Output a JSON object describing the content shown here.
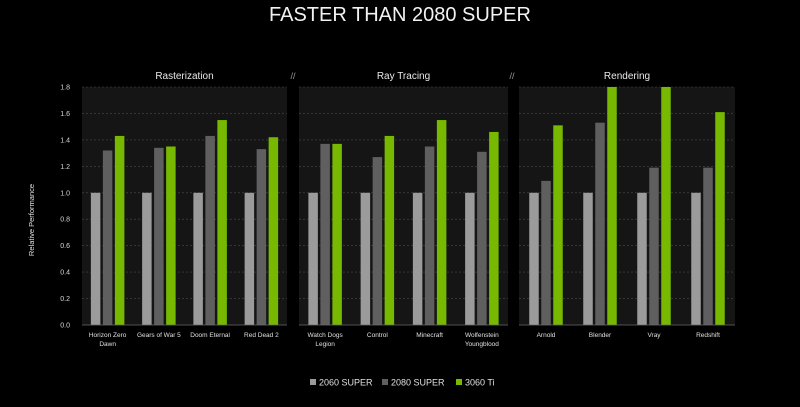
{
  "chart_data": {
    "type": "bar",
    "title": "FASTER THAN 2080 SUPER",
    "ylabel": "Relative Performance",
    "ylim": [
      0,
      1.8
    ],
    "yticks": [
      "0.0",
      "0.2",
      "0.4",
      "0.6",
      "0.8",
      "1.0",
      "1.2",
      "1.4",
      "1.6",
      "1.8"
    ],
    "grid": true,
    "legend_position": "bottom",
    "separator": "//",
    "series": [
      {
        "name": "2060 SUPER",
        "color": "#9b9b9b"
      },
      {
        "name": "2080 SUPER",
        "color": "#5f5f5f"
      },
      {
        "name": "3060 Ti",
        "color": "#76b900"
      }
    ],
    "panels": [
      {
        "title": "Rasterization",
        "categories": [
          "Horizon Zero\nDawn",
          "Gears of War 5",
          "Doom Eternal",
          "Red Dead 2"
        ],
        "values": [
          [
            1.0,
            1.32,
            1.43
          ],
          [
            1.0,
            1.34,
            1.35
          ],
          [
            1.0,
            1.43,
            1.55
          ],
          [
            1.0,
            1.33,
            1.42
          ]
        ]
      },
      {
        "title": "Ray Tracing",
        "categories": [
          "Watch Dogs\nLegion",
          "Control",
          "Minecraft",
          "Wolfenstein\nYoungblood"
        ],
        "values": [
          [
            1.0,
            1.37,
            1.37
          ],
          [
            1.0,
            1.27,
            1.43
          ],
          [
            1.0,
            1.35,
            1.55
          ],
          [
            1.0,
            1.31,
            1.46
          ]
        ]
      },
      {
        "title": "Rendering",
        "categories": [
          "Arnold",
          "Blender",
          "Vray",
          "Redshift"
        ],
        "values": [
          [
            1.0,
            1.09,
            1.51
          ],
          [
            1.0,
            1.53,
            1.8
          ],
          [
            1.0,
            1.19,
            1.8
          ],
          [
            1.0,
            1.19,
            1.61
          ]
        ]
      }
    ]
  }
}
